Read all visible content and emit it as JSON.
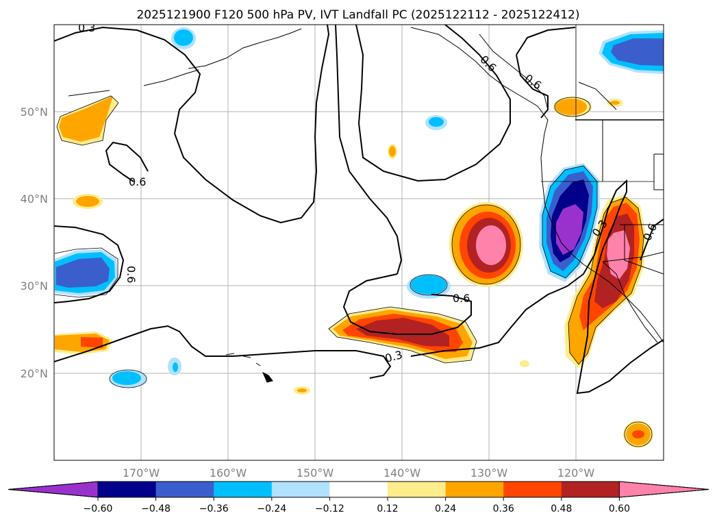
{
  "title": "2025121900 F120 500 hPa PV, IVT Landfall PC (2025122112 - 2025122412)",
  "lat_labels": [
    "50°N",
    "40°N",
    "30°N",
    "20°N"
  ],
  "lon_labels": [
    "170°W",
    "160°W",
    "150°W",
    "140°W",
    "130°W",
    "120°W"
  ],
  "contour_labels": [
    "0.3",
    "0.6",
    "0.6",
    "0.6",
    "0.6",
    "0.3",
    "0.6",
    "0.3",
    "0.6"
  ],
  "colorbar": {
    "ticks": [
      "−0.60",
      "−0.48",
      "−0.36",
      "−0.24",
      "−0.12",
      "0.12",
      "0.24",
      "0.36",
      "0.48",
      "0.60"
    ],
    "colors": [
      "#9932cc",
      "#00008b",
      "#3a5fcd",
      "#00bfff",
      "#b0e2ff",
      "#ffffff",
      "#ffec8b",
      "#ffa500",
      "#ff4500",
      "#b22222",
      "#ff82ab"
    ]
  },
  "map_data": {
    "type": "filled-contour-map",
    "projection": "PlateCarree",
    "lon_range": [
      -180,
      -110
    ],
    "lat_range": [
      10,
      60
    ],
    "gridlines": true,
    "levels": [
      -0.6,
      -0.48,
      -0.36,
      -0.24,
      -0.12,
      0.12,
      0.24,
      0.36,
      0.48,
      0.6
    ],
    "line_contours": [
      0.3,
      0.6
    ]
  }
}
